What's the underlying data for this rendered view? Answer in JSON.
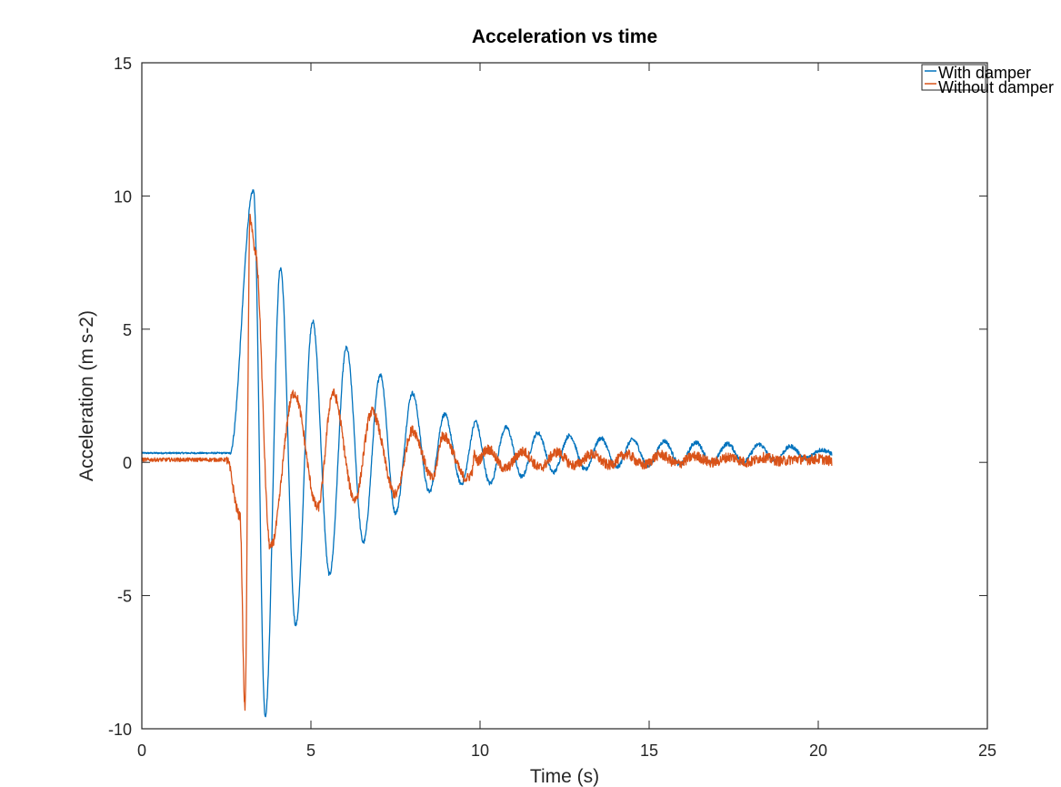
{
  "chart_data": {
    "type": "line",
    "title": "Acceleration vs time",
    "xlabel": "Time (s)",
    "ylabel": "Acceleration (m s-2)",
    "xlim": [
      0,
      25
    ],
    "ylim": [
      -10,
      15
    ],
    "xticks": [
      0,
      5,
      10,
      15,
      20,
      25
    ],
    "yticks": [
      -10,
      -5,
      0,
      5,
      10,
      15
    ],
    "grid": false,
    "legend_position": "top-right",
    "series": [
      {
        "name": "With damper",
        "color": "#0072BD",
        "signal": {
          "t_start": 0,
          "t_end": 20.4,
          "baseline": 0.35,
          "onset": 2.6,
          "peak_time": 3.3,
          "frequency_hz": 1.07,
          "damping_per_s": 0.33,
          "noise": 0.05
        },
        "values": [
          {
            "x": 0,
            "y": 0.35
          },
          {
            "x": 2.6,
            "y": 0.35
          },
          {
            "x": 3.3,
            "y": 10.2
          },
          {
            "x": 3.65,
            "y": -9.5
          },
          {
            "x": 4.1,
            "y": 7.3
          },
          {
            "x": 4.55,
            "y": -6.1
          },
          {
            "x": 5.05,
            "y": 5.3
          },
          {
            "x": 5.55,
            "y": -4.2
          },
          {
            "x": 6.05,
            "y": 4.3
          },
          {
            "x": 6.55,
            "y": -3.0
          },
          {
            "x": 7.05,
            "y": 3.3
          },
          {
            "x": 7.5,
            "y": -1.9
          },
          {
            "x": 8.0,
            "y": 2.6
          },
          {
            "x": 8.5,
            "y": -1.1
          },
          {
            "x": 8.95,
            "y": 1.8
          },
          {
            "x": 9.45,
            "y": -0.8
          },
          {
            "x": 9.9,
            "y": 1.6
          },
          {
            "x": 10.9,
            "y": 1.3
          },
          {
            "x": 11.8,
            "y": 1.1
          },
          {
            "x": 12.8,
            "y": 1.0
          },
          {
            "x": 13.7,
            "y": 0.9
          },
          {
            "x": 14.6,
            "y": 0.85
          },
          {
            "x": 15.5,
            "y": 0.8
          },
          {
            "x": 16.4,
            "y": 0.75
          },
          {
            "x": 17.3,
            "y": 0.7
          },
          {
            "x": 18.2,
            "y": 0.68
          },
          {
            "x": 19.1,
            "y": 0.6
          },
          {
            "x": 20.4,
            "y": 0.45
          }
        ]
      },
      {
        "name": "Without damper",
        "color": "#D95319",
        "signal": {
          "t_start": 0,
          "t_end": 20.4,
          "baseline": 0.1,
          "onset": 2.5,
          "peak_time": 3.1,
          "frequency_hz": 0.98,
          "damping_per_s": 0.42,
          "noise": 0.12
        },
        "values": [
          {
            "x": 0,
            "y": 0.1
          },
          {
            "x": 2.5,
            "y": 0.1
          },
          {
            "x": 2.9,
            "y": -2.0
          },
          {
            "x": 3.05,
            "y": -9.2
          },
          {
            "x": 3.2,
            "y": 9.2
          },
          {
            "x": 3.35,
            "y": 7.9
          },
          {
            "x": 3.8,
            "y": -3.2
          },
          {
            "x": 4.5,
            "y": 2.6
          },
          {
            "x": 5.2,
            "y": -1.7
          },
          {
            "x": 5.65,
            "y": 2.6
          },
          {
            "x": 6.3,
            "y": -1.4
          },
          {
            "x": 6.8,
            "y": 1.9
          },
          {
            "x": 7.5,
            "y": -1.2
          },
          {
            "x": 8.0,
            "y": 1.2
          },
          {
            "x": 8.6,
            "y": -0.6
          },
          {
            "x": 8.9,
            "y": 1.0
          },
          {
            "x": 9.6,
            "y": -0.6
          },
          {
            "x": 10.1,
            "y": 0.5
          },
          {
            "x": 11.1,
            "y": 0.4
          },
          {
            "x": 12.0,
            "y": 0.4
          },
          {
            "x": 13.0,
            "y": 0.3
          },
          {
            "x": 14.0,
            "y": 0.3
          },
          {
            "x": 15.0,
            "y": 0.3
          },
          {
            "x": 16.0,
            "y": 0.25
          },
          {
            "x": 17.0,
            "y": 0.2
          },
          {
            "x": 18.0,
            "y": 0.2
          },
          {
            "x": 19.0,
            "y": 0.15
          },
          {
            "x": 20.4,
            "y": 0.05
          }
        ]
      }
    ]
  }
}
